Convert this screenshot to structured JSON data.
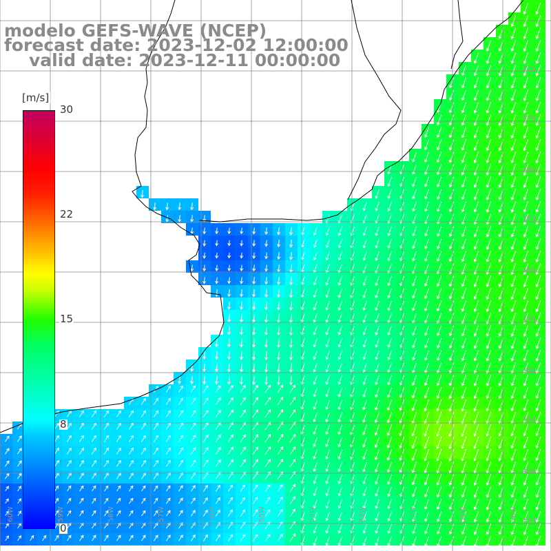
{
  "title": {
    "line1": "modelo GEFS-WAVE (NCEP)",
    "line2": "forecast date: 2023-12-02 12:00:00",
    "line3": "valid date: 2023-12-11 00:00:00"
  },
  "colorbar": {
    "unit": "[m/s]",
    "ticks": [
      "30",
      "22",
      "15",
      "8",
      "0"
    ],
    "range": [
      0,
      30
    ],
    "colors": [
      "#0000ff",
      "#00c8ff",
      "#00ffff",
      "#00ff60",
      "#20ff00",
      "#c8ff00",
      "#ffff00",
      "#ff9000",
      "#ff2000",
      "#c00060"
    ]
  },
  "map": {
    "lat_labels": [
      "32S",
      "33S",
      "34S",
      "35S",
      "36S",
      "37S",
      "38S",
      "39S",
      "40S",
      "41S"
    ],
    "lon_labels": [
      "60W",
      "59W",
      "58W",
      "57W",
      "56W",
      "55W",
      "54W",
      "53W",
      "52W",
      "51W",
      "50W"
    ],
    "land_color": "#ffffff",
    "grid_color": "#888888",
    "coast_color": "#000000",
    "arrow_color": "#ffffff"
  }
}
